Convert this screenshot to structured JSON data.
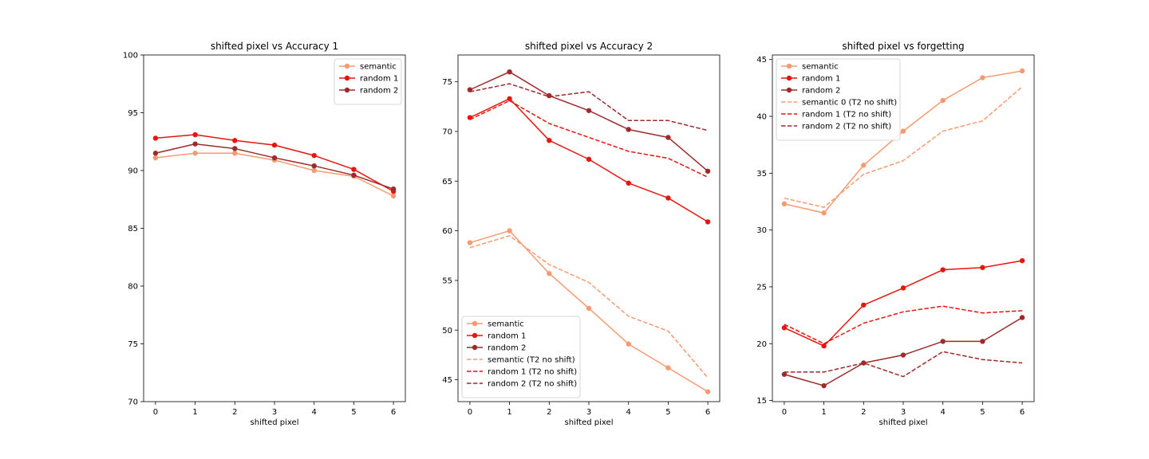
{
  "chart_data": [
    {
      "type": "line",
      "title": "shifted pixel vs Accuracy 1",
      "xlabel": "shifted pixel",
      "ylabel": "",
      "xlim": [
        -0.3,
        6.3
      ],
      "ylim": [
        70,
        100
      ],
      "xticks": [
        0,
        1,
        2,
        3,
        4,
        5,
        6
      ],
      "yticks": [
        70,
        75,
        80,
        85,
        90,
        95,
        100
      ],
      "legend_position": "top-right",
      "x": [
        0,
        1,
        2,
        3,
        4,
        5,
        6
      ],
      "series": [
        {
          "name": "semantic",
          "color": "#f79a72",
          "style": "solid",
          "marker": true,
          "values": [
            91.1,
            91.5,
            91.5,
            90.9,
            90.0,
            89.5,
            87.8
          ]
        },
        {
          "name": "random 1",
          "color": "#e8150f",
          "style": "solid",
          "marker": true,
          "values": [
            92.8,
            93.1,
            92.6,
            92.2,
            91.3,
            90.1,
            88.2
          ]
        },
        {
          "name": "random 2",
          "color": "#9e2a2a",
          "style": "solid",
          "marker": true,
          "values": [
            91.5,
            92.3,
            91.9,
            91.1,
            90.4,
            89.6,
            88.4
          ]
        }
      ]
    },
    {
      "type": "line",
      "title": "shifted pixel vs Accuracy 2",
      "xlabel": "shifted pixel",
      "ylabel": "",
      "xlim": [
        -0.3,
        6.3
      ],
      "ylim": [
        42.8,
        77.7
      ],
      "xticks": [
        0,
        1,
        2,
        3,
        4,
        5,
        6
      ],
      "yticks": [
        45,
        50,
        55,
        60,
        65,
        70,
        75
      ],
      "legend_position": "bottom-left",
      "x": [
        0,
        1,
        2,
        3,
        4,
        5,
        6
      ],
      "series": [
        {
          "name": "semantic",
          "color": "#f79a72",
          "style": "solid",
          "marker": true,
          "values": [
            58.8,
            60.0,
            55.7,
            52.2,
            48.6,
            46.2,
            43.8
          ]
        },
        {
          "name": "random 1",
          "color": "#e8150f",
          "style": "solid",
          "marker": true,
          "values": [
            71.4,
            73.3,
            69.1,
            67.2,
            64.8,
            63.3,
            60.9
          ]
        },
        {
          "name": "random 2",
          "color": "#9e2a2a",
          "style": "solid",
          "marker": true,
          "values": [
            74.2,
            76.0,
            73.6,
            72.1,
            70.2,
            69.4,
            66.0
          ]
        },
        {
          "name": "semantic (T2 no shift)",
          "color": "#f79a72",
          "style": "dashed",
          "marker": false,
          "values": [
            58.3,
            59.5,
            56.6,
            54.8,
            51.4,
            49.9,
            45.2
          ]
        },
        {
          "name": "random 1 (T2 no shift)",
          "color": "#e8150f",
          "style": "dashed",
          "marker": false,
          "values": [
            71.2,
            73.1,
            70.8,
            69.4,
            68.0,
            67.3,
            65.4
          ]
        },
        {
          "name": "random 2 (T2 no shift)",
          "color": "#9e2a2a",
          "style": "dashed",
          "marker": false,
          "values": [
            74.0,
            74.8,
            73.5,
            74.0,
            71.1,
            71.1,
            70.1
          ]
        }
      ]
    },
    {
      "type": "line",
      "title": "shifted pixel vs forgetting",
      "xlabel": "shifted pixel",
      "ylabel": "",
      "xlim": [
        -0.3,
        6.3
      ],
      "ylim": [
        14.9,
        45.4
      ],
      "xticks": [
        0,
        1,
        2,
        3,
        4,
        5,
        6
      ],
      "yticks": [
        15,
        20,
        25,
        30,
        35,
        40,
        45
      ],
      "legend_position": "top-left",
      "x": [
        0,
        1,
        2,
        3,
        4,
        5,
        6
      ],
      "series": [
        {
          "name": "semantic",
          "color": "#f79a72",
          "style": "solid",
          "marker": true,
          "values": [
            32.3,
            31.5,
            35.7,
            38.7,
            41.4,
            43.4,
            44.0
          ]
        },
        {
          "name": "random 1",
          "color": "#e8150f",
          "style": "solid",
          "marker": true,
          "values": [
            21.4,
            19.8,
            23.4,
            24.9,
            26.5,
            26.7,
            27.3
          ]
        },
        {
          "name": "random 2",
          "color": "#9e2a2a",
          "style": "solid",
          "marker": true,
          "values": [
            17.3,
            16.3,
            18.3,
            19.0,
            20.2,
            20.2,
            22.3
          ]
        },
        {
          "name": "semantic 0 (T2 no shift)",
          "color": "#f79a72",
          "style": "dashed",
          "marker": false,
          "values": [
            32.8,
            32.0,
            34.9,
            36.1,
            38.7,
            39.6,
            42.6
          ]
        },
        {
          "name": "random 1 (T2 no shift)",
          "color": "#e8150f",
          "style": "dashed",
          "marker": false,
          "values": [
            21.7,
            20.0,
            21.8,
            22.8,
            23.3,
            22.7,
            22.9
          ]
        },
        {
          "name": "random 2 (T2 no shift)",
          "color": "#9e2a2a",
          "style": "dashed",
          "marker": false,
          "values": [
            17.5,
            17.5,
            18.3,
            17.1,
            19.3,
            18.6,
            18.3
          ]
        }
      ]
    }
  ]
}
